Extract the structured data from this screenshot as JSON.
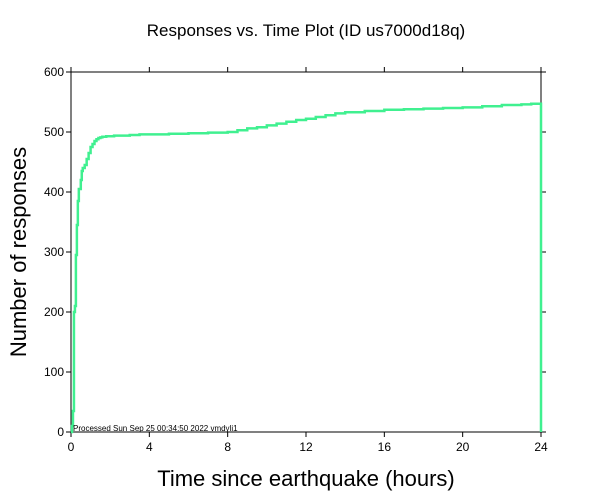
{
  "chart_data": {
    "type": "line",
    "title": "Responses vs. Time Plot (ID us7000d18q)",
    "xlabel": "Time since earthquake (hours)",
    "ylabel": "Number of responses",
    "xlim": [
      0,
      24
    ],
    "ylim": [
      0,
      600
    ],
    "x_ticks": [
      0,
      4,
      8,
      12,
      16,
      20,
      24
    ],
    "y_ticks": [
      0,
      100,
      200,
      300,
      400,
      500,
      600
    ],
    "grid": false,
    "legend": "none",
    "line_color": "#40f090",
    "annotation": "Processed Sun Sep 25 00:34:50 2022 vmdyli1",
    "series": [
      {
        "step": true,
        "x": [
          0,
          0.05,
          0.1,
          0.15,
          0.2,
          0.25,
          0.3,
          0.35,
          0.4,
          0.5,
          0.55,
          0.6,
          0.7,
          0.8,
          0.9,
          1.0,
          1.1,
          1.2,
          1.3,
          1.4,
          1.5,
          1.6,
          1.7,
          1.8,
          2.0,
          2.2,
          2.5,
          3.0,
          3.5,
          4.0,
          5.0,
          6.0,
          7.0,
          8.0,
          8.5,
          9.0,
          9.5,
          10.0,
          10.5,
          11.0,
          11.5,
          12.0,
          12.5,
          13.0,
          13.5,
          14.0,
          15.0,
          16.0,
          17.0,
          18.0,
          19.0,
          20.0,
          21.0,
          22.0,
          23.0,
          23.5,
          23.9,
          24.0
        ],
        "y": [
          0,
          10,
          35,
          200,
          210,
          295,
          345,
          385,
          405,
          420,
          435,
          440,
          445,
          455,
          465,
          475,
          480,
          485,
          488,
          490,
          491,
          492,
          492,
          493,
          493,
          494,
          494,
          495,
          496,
          496,
          497,
          498,
          499,
          500,
          503,
          506,
          508,
          511,
          514,
          517,
          520,
          522,
          525,
          528,
          531,
          533,
          535,
          537,
          538,
          539,
          540,
          541,
          543,
          545,
          546,
          547,
          547,
          0
        ]
      }
    ]
  }
}
